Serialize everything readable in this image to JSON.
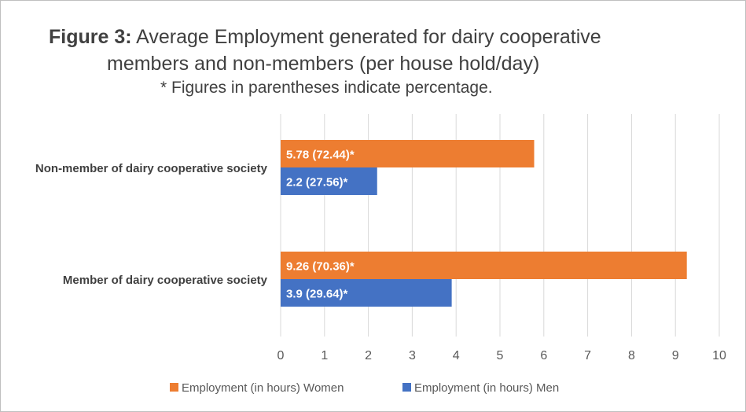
{
  "title": {
    "prefix": "Figure 3:",
    "line1": " Average Employment generated for dairy cooperative",
    "line2": "members and non-members (per house hold/day)"
  },
  "subtitle": "* Figures in parentheses indicate percentage.",
  "colors": {
    "women": "#ED7D31",
    "men": "#4472C4",
    "grid": "#d9d9d9",
    "text": "#404040",
    "label": "#ffffff"
  },
  "chart_data": {
    "type": "bar",
    "orientation": "horizontal",
    "categories": [
      "Non-member of dairy cooperative society",
      "Member of dairy cooperative society"
    ],
    "series": [
      {
        "name": "Employment (in hours) Women",
        "values": [
          5.78,
          9.26
        ],
        "labels": [
          "5.78 (72.44)*",
          "9.26 (70.36)*"
        ]
      },
      {
        "name": "Employment (in hours) Men",
        "values": [
          2.2,
          3.9
        ],
        "labels": [
          "2.2 (27.56)*",
          "3.9 (29.64)*"
        ]
      }
    ],
    "xlim": [
      0,
      10
    ],
    "xticks": [
      "0",
      "1",
      "2",
      "3",
      "4",
      "5",
      "6",
      "7",
      "8",
      "9",
      "10"
    ],
    "grid": true,
    "legend": "bottom"
  }
}
